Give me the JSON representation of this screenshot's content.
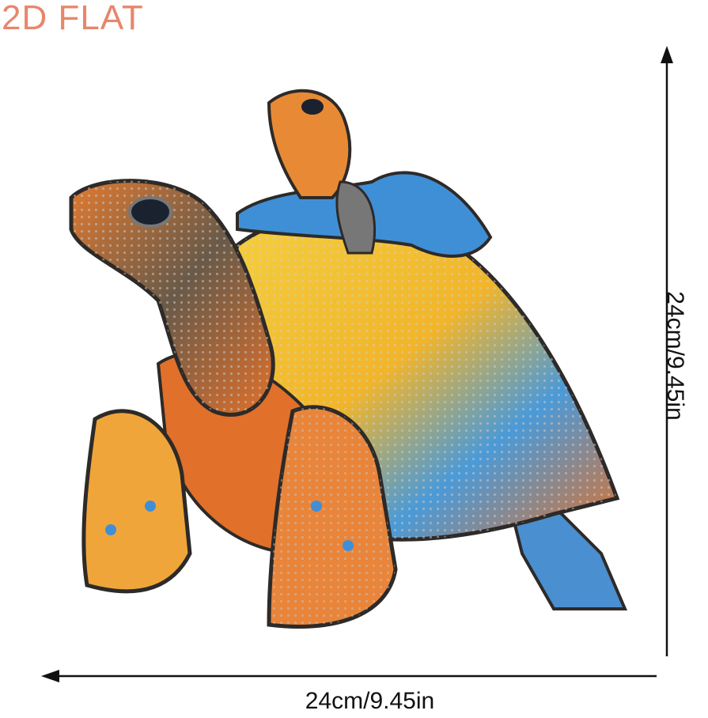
{
  "title": "2D FLAT",
  "dimensions": {
    "width_label": "24cm/9.45in",
    "height_label": "24cm/9.45in"
  },
  "image": {
    "subject": "mosaic-turtle-with-baby-icon",
    "colors": {
      "title": "#e8866c",
      "orange": "#e0702a",
      "yellow": "#f2c230",
      "blue": "#3f8fd6",
      "dark": "#2d2a28"
    }
  }
}
